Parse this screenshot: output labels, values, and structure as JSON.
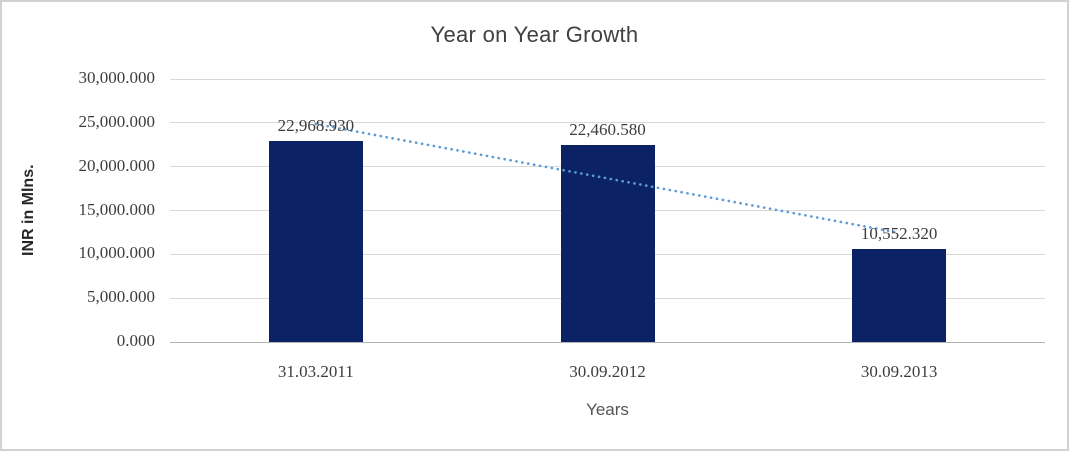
{
  "chart_data": {
    "type": "bar",
    "title": "Year on Year Growth",
    "categories": [
      "31.03.2011",
      "30.09.2012",
      "30.09.2013"
    ],
    "values": [
      22968.93,
      22460.58,
      10552.32
    ],
    "data_labels": [
      "22,968.930",
      "22,460.580",
      "10,552.320"
    ],
    "xlabel": "Years",
    "ylabel": "INR in Mlns.",
    "ylim": [
      0,
      30000
    ],
    "yticks": [
      {
        "value": 0,
        "label": "0.000"
      },
      {
        "value": 5000,
        "label": "5,000.000"
      },
      {
        "value": 10000,
        "label": "10,000.000"
      },
      {
        "value": 15000,
        "label": "15,000.000"
      },
      {
        "value": 20000,
        "label": "20,000.000"
      },
      {
        "value": 25000,
        "label": "25,000.000"
      },
      {
        "value": 30000,
        "label": "30,000.000"
      }
    ],
    "grid": "horizontal",
    "legend": "none",
    "bar_color": "#0b2265",
    "trendline": {
      "type": "linear",
      "style": "dotted",
      "color": "#5b9bd5"
    }
  }
}
